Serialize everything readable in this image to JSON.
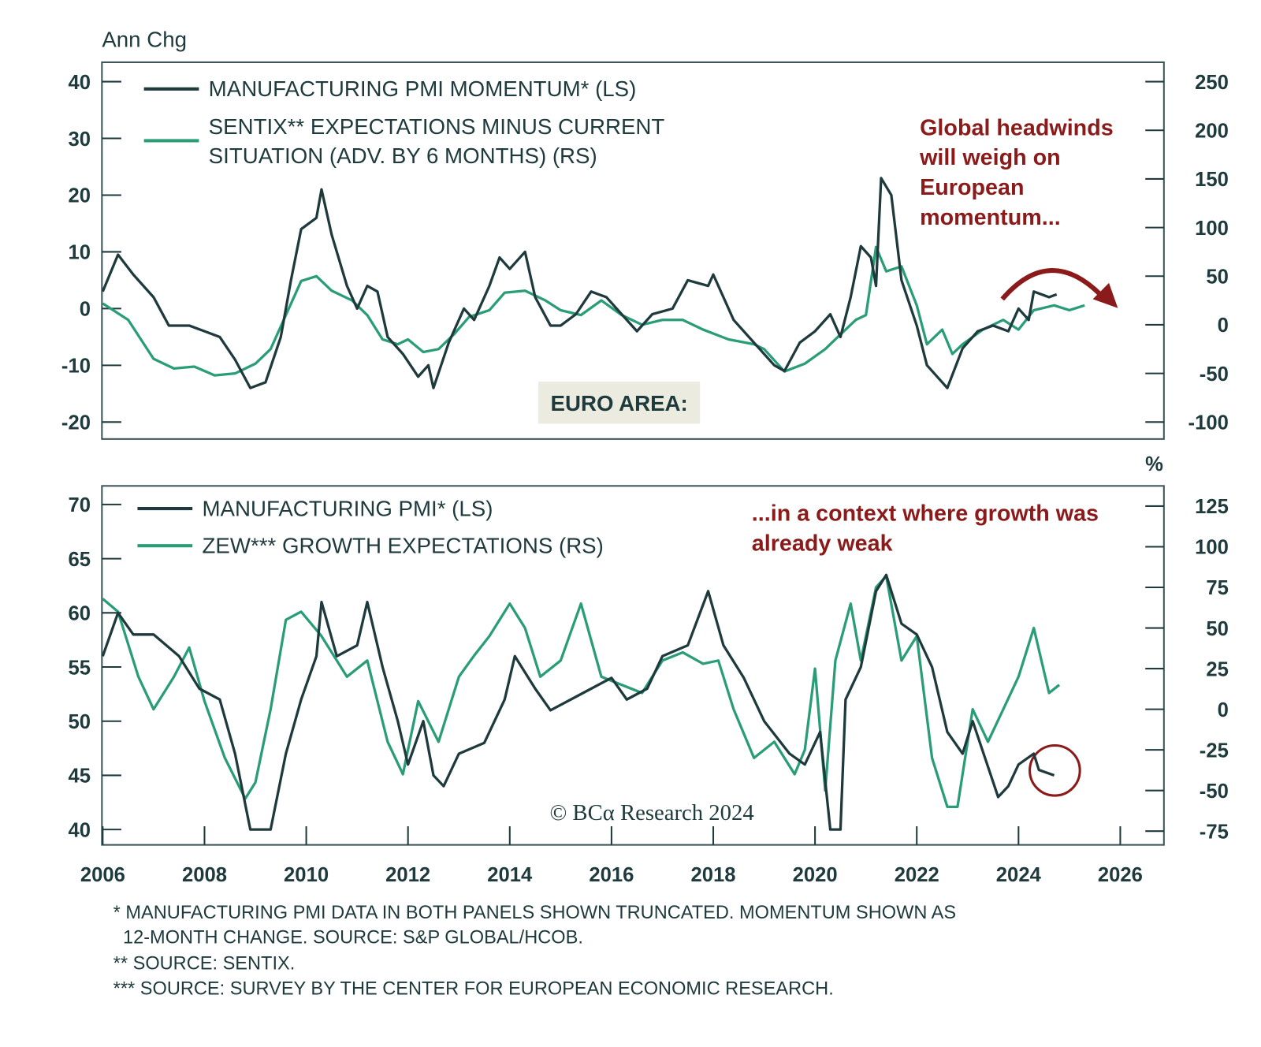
{
  "colors": {
    "pmi": "#1f3a3d",
    "survey": "#2a9d78",
    "annotation": "#8b1a1a",
    "label_box": "#ecebe0"
  },
  "x_ticks": [
    "2006",
    "2008",
    "2010",
    "2012",
    "2014",
    "2016",
    "2018",
    "2020",
    "2022",
    "2024",
    "2026"
  ],
  "footnotes": [
    "* MANUFACTURING PMI DATA IN BOTH PANELS SHOWN TRUNCATED. MOMENTUM SHOWN AS",
    "12-MONTH CHANGE. SOURCE: S&P GLOBAL/HCOB.",
    "** SOURCE: SENTIX.",
    "*** SOURCE: SURVEY BY THE CENTER FOR EUROPEAN ECONOMIC RESEARCH."
  ],
  "copyright": "© BCα Research 2024",
  "chart_data": [
    {
      "type": "line",
      "ylabel": "Ann Chg",
      "panel_label": "EURO AREA:",
      "annotation": [
        "Global headwinds",
        "will weigh on",
        "European",
        "momentum..."
      ],
      "xlim": [
        2006,
        2026
      ],
      "ylim_left": [
        -20,
        40
      ],
      "yticks_left": [
        "40",
        "30",
        "20",
        "10",
        "0",
        "-10",
        "-20"
      ],
      "ylim_right": [
        -100,
        250
      ],
      "yticks_right": [
        "250",
        "200",
        "150",
        "100",
        "50",
        "0",
        "-50",
        "-100"
      ],
      "grid": false,
      "legend_placement": "top-left",
      "series": [
        {
          "name": "MANUFACTURING PMI MOMENTUM* (LS)",
          "axis": "left",
          "color": "#1f3a3d",
          "points": [
            [
              2006.0,
              3
            ],
            [
              2006.3,
              9.5
            ],
            [
              2006.6,
              6
            ],
            [
              2007.0,
              2
            ],
            [
              2007.3,
              -3
            ],
            [
              2007.7,
              -3
            ],
            [
              2008.0,
              -4
            ],
            [
              2008.3,
              -5
            ],
            [
              2008.6,
              -9
            ],
            [
              2008.9,
              -14
            ],
            [
              2009.2,
              -13
            ],
            [
              2009.5,
              -5
            ],
            [
              2009.7,
              5
            ],
            [
              2009.9,
              14
            ],
            [
              2010.2,
              16
            ],
            [
              2010.3,
              21
            ],
            [
              2010.5,
              13
            ],
            [
              2010.8,
              4
            ],
            [
              2011.0,
              0
            ],
            [
              2011.2,
              4
            ],
            [
              2011.4,
              3
            ],
            [
              2011.6,
              -5
            ],
            [
              2011.9,
              -8
            ],
            [
              2012.2,
              -12
            ],
            [
              2012.4,
              -10
            ],
            [
              2012.5,
              -14
            ],
            [
              2012.8,
              -6
            ],
            [
              2013.1,
              0
            ],
            [
              2013.3,
              -2
            ],
            [
              2013.6,
              4
            ],
            [
              2013.8,
              9
            ],
            [
              2014.0,
              7
            ],
            [
              2014.3,
              10
            ],
            [
              2014.5,
              2
            ],
            [
              2014.8,
              -3
            ],
            [
              2015.0,
              -3
            ],
            [
              2015.3,
              -1
            ],
            [
              2015.6,
              3
            ],
            [
              2015.9,
              2
            ],
            [
              2016.2,
              -1
            ],
            [
              2016.5,
              -4
            ],
            [
              2016.8,
              -1
            ],
            [
              2017.2,
              0
            ],
            [
              2017.5,
              5
            ],
            [
              2017.9,
              4
            ],
            [
              2018.0,
              6
            ],
            [
              2018.4,
              -2
            ],
            [
              2018.8,
              -6
            ],
            [
              2019.2,
              -10
            ],
            [
              2019.4,
              -11
            ],
            [
              2019.7,
              -6
            ],
            [
              2020.0,
              -4
            ],
            [
              2020.3,
              -1
            ],
            [
              2020.5,
              -5
            ],
            [
              2020.7,
              2
            ],
            [
              2020.9,
              11
            ],
            [
              2021.1,
              9
            ],
            [
              2021.2,
              4
            ],
            [
              2021.3,
              23
            ],
            [
              2021.5,
              20
            ],
            [
              2021.7,
              5
            ],
            [
              2022.0,
              -3
            ],
            [
              2022.2,
              -10
            ],
            [
              2022.5,
              -13
            ],
            [
              2022.6,
              -14
            ],
            [
              2022.9,
              -7
            ],
            [
              2023.2,
              -4
            ],
            [
              2023.5,
              -3
            ],
            [
              2023.8,
              -4
            ],
            [
              2024.0,
              0
            ],
            [
              2024.2,
              -2
            ],
            [
              2024.3,
              3
            ],
            [
              2024.6,
              2
            ],
            [
              2024.75,
              2.5
            ]
          ]
        },
        {
          "name": "SENTIX** EXPECTATIONS MINUS CURRENT SITUATION (ADV. BY 6 MONTHS) (RS)",
          "axis": "right",
          "color": "#2a9d78",
          "points": [
            [
              2006.0,
              22
            ],
            [
              2006.5,
              5
            ],
            [
              2007.0,
              -35
            ],
            [
              2007.4,
              -45
            ],
            [
              2007.8,
              -43
            ],
            [
              2008.2,
              -52
            ],
            [
              2008.6,
              -50
            ],
            [
              2009.0,
              -40
            ],
            [
              2009.3,
              -25
            ],
            [
              2009.6,
              10
            ],
            [
              2009.9,
              45
            ],
            [
              2010.2,
              50
            ],
            [
              2010.5,
              35
            ],
            [
              2010.9,
              25
            ],
            [
              2011.2,
              10
            ],
            [
              2011.5,
              -15
            ],
            [
              2011.8,
              -20
            ],
            [
              2012.0,
              -15
            ],
            [
              2012.3,
              -28
            ],
            [
              2012.6,
              -25
            ],
            [
              2012.9,
              -10
            ],
            [
              2013.2,
              8
            ],
            [
              2013.6,
              15
            ],
            [
              2013.9,
              33
            ],
            [
              2014.3,
              35
            ],
            [
              2014.7,
              25
            ],
            [
              2015.0,
              15
            ],
            [
              2015.4,
              10
            ],
            [
              2015.8,
              25
            ],
            [
              2016.2,
              10
            ],
            [
              2016.6,
              0
            ],
            [
              2017.0,
              5
            ],
            [
              2017.4,
              5
            ],
            [
              2017.8,
              -5
            ],
            [
              2018.3,
              -15
            ],
            [
              2018.8,
              -20
            ],
            [
              2019.0,
              -25
            ],
            [
              2019.4,
              -48
            ],
            [
              2019.8,
              -40
            ],
            [
              2020.2,
              -25
            ],
            [
              2020.5,
              -10
            ],
            [
              2020.8,
              5
            ],
            [
              2021.0,
              10
            ],
            [
              2021.2,
              80
            ],
            [
              2021.4,
              55
            ],
            [
              2021.7,
              60
            ],
            [
              2022.0,
              20
            ],
            [
              2022.2,
              -20
            ],
            [
              2022.5,
              -5
            ],
            [
              2022.7,
              -30
            ],
            [
              2022.9,
              -20
            ],
            [
              2023.3,
              -5
            ],
            [
              2023.7,
              5
            ],
            [
              2024.0,
              -5
            ],
            [
              2024.3,
              15
            ],
            [
              2024.7,
              20
            ],
            [
              2025.0,
              15
            ],
            [
              2025.3,
              20
            ]
          ]
        }
      ]
    },
    {
      "type": "line",
      "ylabel_right": "%",
      "annotation": [
        "...in a context where growth was",
        "already weak"
      ],
      "xlim": [
        2006,
        2026
      ],
      "ylim_left": [
        40,
        70
      ],
      "yticks_left": [
        "70",
        "65",
        "60",
        "55",
        "50",
        "45",
        "40"
      ],
      "ylim_right": [
        -75,
        125
      ],
      "yticks_right": [
        "125",
        "100",
        "75",
        "50",
        "25",
        "0",
        "-25",
        "-50",
        "-75"
      ],
      "grid": false,
      "legend_placement": "top-left",
      "series": [
        {
          "name": "MANUFACTURING PMI* (LS)",
          "axis": "left",
          "color": "#1f3a3d",
          "points": [
            [
              2006.0,
              56
            ],
            [
              2006.3,
              60
            ],
            [
              2006.6,
              58
            ],
            [
              2007.0,
              58
            ],
            [
              2007.5,
              56
            ],
            [
              2007.9,
              53
            ],
            [
              2008.3,
              52
            ],
            [
              2008.6,
              47
            ],
            [
              2008.9,
              40
            ],
            [
              2009.3,
              40
            ],
            [
              2009.6,
              47
            ],
            [
              2009.9,
              52
            ],
            [
              2010.2,
              56
            ],
            [
              2010.3,
              61
            ],
            [
              2010.6,
              56
            ],
            [
              2011.0,
              57
            ],
            [
              2011.2,
              61
            ],
            [
              2011.5,
              55
            ],
            [
              2011.8,
              50
            ],
            [
              2012.0,
              46
            ],
            [
              2012.3,
              50
            ],
            [
              2012.5,
              45
            ],
            [
              2012.7,
              44
            ],
            [
              2013.0,
              47
            ],
            [
              2013.5,
              48
            ],
            [
              2013.9,
              52
            ],
            [
              2014.1,
              56
            ],
            [
              2014.5,
              53
            ],
            [
              2014.8,
              51
            ],
            [
              2015.2,
              52
            ],
            [
              2015.6,
              53
            ],
            [
              2016.0,
              54
            ],
            [
              2016.3,
              52
            ],
            [
              2016.7,
              53
            ],
            [
              2017.0,
              56
            ],
            [
              2017.5,
              57
            ],
            [
              2017.9,
              62
            ],
            [
              2018.2,
              57
            ],
            [
              2018.6,
              54
            ],
            [
              2019.0,
              50
            ],
            [
              2019.5,
              47
            ],
            [
              2019.8,
              46
            ],
            [
              2020.1,
              49
            ],
            [
              2020.3,
              40
            ],
            [
              2020.5,
              40
            ],
            [
              2020.6,
              52
            ],
            [
              2020.9,
              55
            ],
            [
              2021.2,
              62
            ],
            [
              2021.4,
              63.5
            ],
            [
              2021.7,
              59
            ],
            [
              2022.0,
              58
            ],
            [
              2022.3,
              55
            ],
            [
              2022.6,
              49
            ],
            [
              2022.9,
              47
            ],
            [
              2023.1,
              50
            ],
            [
              2023.6,
              43
            ],
            [
              2023.8,
              44
            ],
            [
              2024.0,
              46
            ],
            [
              2024.3,
              47
            ],
            [
              2024.4,
              45.5
            ],
            [
              2024.7,
              45
            ]
          ]
        },
        {
          "name": "ZEW*** GROWTH EXPECTATIONS (RS)",
          "axis": "right",
          "color": "#2a9d78",
          "points": [
            [
              2006.0,
              68
            ],
            [
              2006.3,
              60
            ],
            [
              2006.7,
              20
            ],
            [
              2007.0,
              0
            ],
            [
              2007.4,
              20
            ],
            [
              2007.7,
              38
            ],
            [
              2008.0,
              5
            ],
            [
              2008.4,
              -30
            ],
            [
              2008.8,
              -55
            ],
            [
              2009.0,
              -45
            ],
            [
              2009.3,
              0
            ],
            [
              2009.6,
              55
            ],
            [
              2009.9,
              60
            ],
            [
              2010.3,
              45
            ],
            [
              2010.8,
              20
            ],
            [
              2011.2,
              30
            ],
            [
              2011.6,
              -20
            ],
            [
              2011.9,
              -40
            ],
            [
              2012.2,
              5
            ],
            [
              2012.6,
              -20
            ],
            [
              2013.0,
              20
            ],
            [
              2013.3,
              33
            ],
            [
              2013.6,
              45
            ],
            [
              2014.0,
              65
            ],
            [
              2014.3,
              50
            ],
            [
              2014.6,
              20
            ],
            [
              2015.0,
              30
            ],
            [
              2015.4,
              65
            ],
            [
              2015.8,
              20
            ],
            [
              2016.2,
              15
            ],
            [
              2016.6,
              10
            ],
            [
              2017.0,
              30
            ],
            [
              2017.4,
              35
            ],
            [
              2017.8,
              28
            ],
            [
              2018.1,
              30
            ],
            [
              2018.4,
              0
            ],
            [
              2018.8,
              -30
            ],
            [
              2019.2,
              -20
            ],
            [
              2019.6,
              -40
            ],
            [
              2019.8,
              -25
            ],
            [
              2020.0,
              25
            ],
            [
              2020.2,
              -50
            ],
            [
              2020.4,
              30
            ],
            [
              2020.7,
              65
            ],
            [
              2020.9,
              30
            ],
            [
              2021.2,
              75
            ],
            [
              2021.4,
              82
            ],
            [
              2021.7,
              30
            ],
            [
              2022.0,
              45
            ],
            [
              2022.3,
              -30
            ],
            [
              2022.6,
              -60
            ],
            [
              2022.8,
              -60
            ],
            [
              2023.1,
              0
            ],
            [
              2023.4,
              -20
            ],
            [
              2023.7,
              0
            ],
            [
              2024.0,
              20
            ],
            [
              2024.3,
              50
            ],
            [
              2024.6,
              10
            ],
            [
              2024.8,
              15
            ]
          ]
        }
      ]
    }
  ]
}
